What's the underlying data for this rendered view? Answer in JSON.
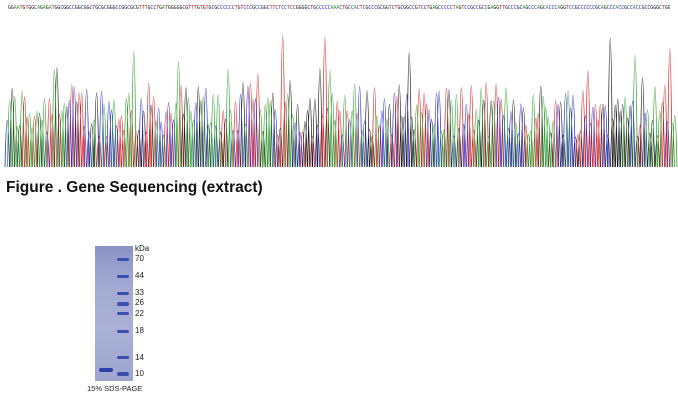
{
  "sequence": {
    "text": "GGAATGTGGCAGAGATGGCGGCCGGCGGCTGCGCGGGCCGGCGCGTTTGCCTGATGGGGGCGTTTGTGTGCGCCCCCCTGTCCCGCCGGCTTCTCCTCCGGGGCTGCCCCCAAACTGCCACTCGCCCGCGGTCTGCGGCCGTCCTGAGCCCCCTAGTCCGCCGCCGAGGTTGCCCGCAGCCCAGCACCCAGGTCCGCCCCCCGCAGCCCACCGCCACCGCCGGGCTGGCTGGAGGCGGCGCCAGCAGGCGCCCCCCGGA",
    "base_colors": {
      "A": "#2e9e2e",
      "C": "#2a2ad0",
      "G": "#111111",
      "T": "#d42020"
    }
  },
  "chromatogram": {
    "trace_colors": [
      "#1a1a1a",
      "#d42020",
      "#2a2ad0",
      "#2e9e2e"
    ],
    "peak_count": 270
  },
  "figure": {
    "caption": "Figure . Gene Sequencing (extract)"
  },
  "gel": {
    "unit_label": "kDa",
    "markers": [
      "70",
      "44",
      "33",
      "26",
      "22",
      "18",
      "14",
      "10"
    ],
    "footnote": "15% SDS-PAGE",
    "band_color": "#2b3fa8"
  }
}
